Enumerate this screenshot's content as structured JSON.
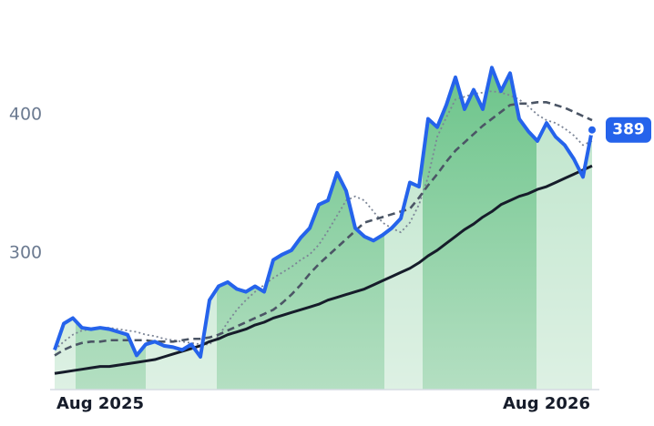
{
  "chart_data": {
    "type": "line",
    "categories": [
      null,
      null,
      null,
      null,
      null,
      "Aug 2025",
      null,
      null,
      null,
      null,
      null,
      null,
      null,
      null,
      null,
      null,
      null,
      null,
      null,
      null,
      null,
      null,
      null,
      null,
      null,
      null,
      null,
      null,
      null,
      null,
      null,
      null,
      null,
      null,
      null,
      null,
      null,
      null,
      null,
      null,
      null,
      null,
      null,
      null,
      null,
      null,
      null,
      null,
      null,
      null,
      null,
      null,
      null,
      null,
      "Aug 2026",
      null,
      null,
      null,
      null,
      null
    ],
    "series": [
      {
        "color": "#2563eb",
        "dash": "solid",
        "area": true,
        "values": [
          230,
          249,
          253,
          246,
          245,
          246,
          245,
          243,
          241,
          226,
          234,
          236,
          233,
          232,
          230,
          234,
          225,
          266,
          276,
          279,
          274,
          272,
          276,
          272,
          295,
          299,
          302,
          311,
          318,
          335,
          338,
          358,
          345,
          318,
          312,
          309,
          313,
          318,
          325,
          351,
          348,
          397,
          391,
          407,
          427,
          404,
          418,
          404,
          434,
          417,
          430,
          397,
          388,
          381,
          394,
          384,
          378,
          368,
          355,
          389
        ]
      },
      {
        "color": "#7c8596",
        "dash": "dotted",
        "values": [
          230,
          236,
          241,
          244,
          245,
          246,
          246,
          245,
          244,
          243,
          241,
          240,
          238,
          237,
          236,
          235,
          234,
          234,
          240,
          250,
          259,
          266,
          272,
          277,
          282,
          286,
          290,
          295,
          299,
          306,
          316,
          327,
          338,
          341,
          338,
          330,
          322,
          318,
          315,
          322,
          335,
          355,
          384,
          398,
          411,
          413,
          415,
          416,
          417,
          416,
          414,
          411,
          406,
          400,
          396,
          394,
          390,
          385,
          378,
          381
        ]
      },
      {
        "color": "#4b5565",
        "dash": "dashed",
        "values": [
          226,
          230,
          233,
          235,
          236,
          236,
          237,
          237,
          237,
          237,
          237,
          236,
          236,
          236,
          237,
          238,
          238,
          239,
          241,
          244,
          247,
          250,
          253,
          256,
          259,
          264,
          270,
          277,
          285,
          292,
          298,
          304,
          310,
          316,
          322,
          324,
          326,
          328,
          330,
          332,
          340,
          349,
          357,
          366,
          374,
          380,
          386,
          392,
          397,
          402,
          407,
          408,
          408,
          409,
          409,
          407,
          405,
          402,
          399,
          396
        ]
      },
      {
        "color": "#161c2a",
        "dash": "solid",
        "values": [
          213,
          214,
          215,
          216,
          217,
          218,
          218,
          219,
          220,
          221,
          222,
          223,
          225,
          227,
          229,
          231,
          233,
          236,
          238,
          241,
          243,
          245,
          248,
          250,
          253,
          255,
          257,
          259,
          261,
          263,
          266,
          268,
          270,
          272,
          274,
          277,
          280,
          283,
          286,
          289,
          293,
          298,
          302,
          307,
          312,
          317,
          321,
          326,
          330,
          335,
          338,
          341,
          343,
          346,
          348,
          351,
          354,
          357,
          360,
          363
        ]
      }
    ],
    "ylim": [
      200,
      470
    ],
    "yticks": [
      300,
      400
    ],
    "grid": false,
    "area_color": "#6cc48a"
  }
}
